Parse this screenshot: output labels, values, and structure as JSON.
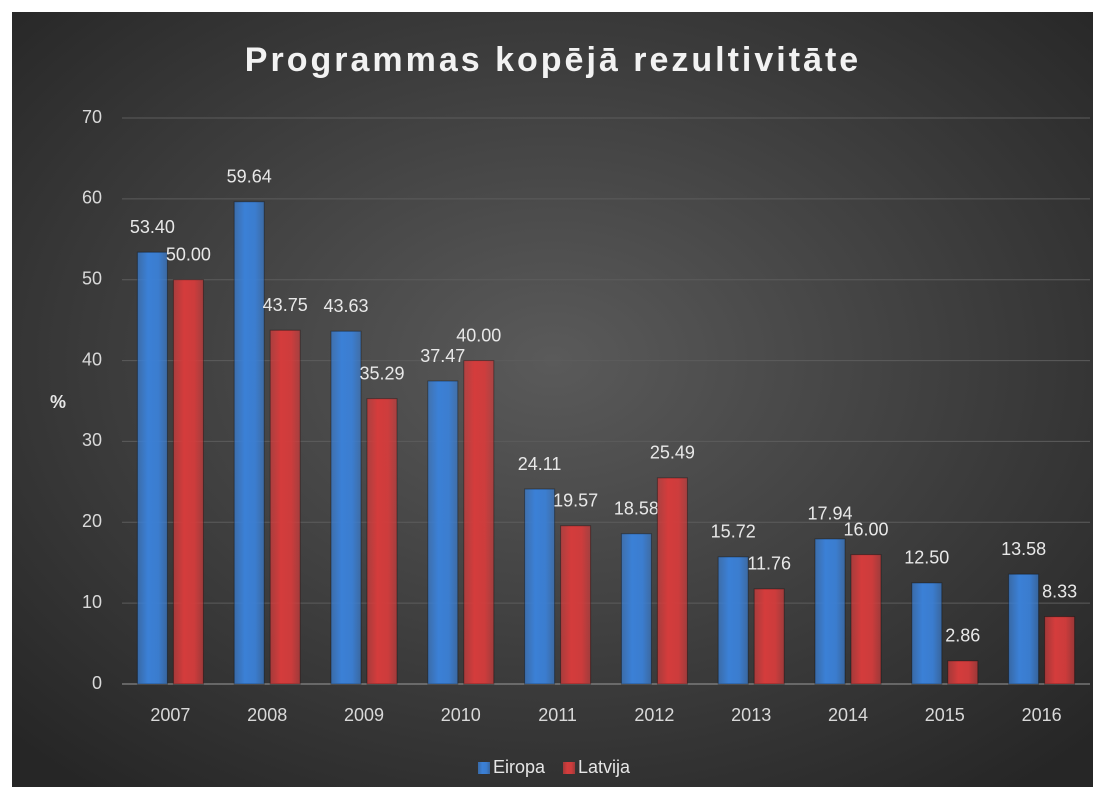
{
  "chart_data": {
    "type": "bar",
    "title": "Programmas kopējā rezultivitāte",
    "y_label": "%",
    "categories": [
      "2007",
      "2008",
      "2009",
      "2010",
      "2011",
      "2012",
      "2013",
      "2014",
      "2015",
      "2016"
    ],
    "series": [
      {
        "name": "Eiropa",
        "color": "#3b80d6",
        "values": [
          53.4,
          59.64,
          43.63,
          37.47,
          24.11,
          18.58,
          15.72,
          17.94,
          12.5,
          13.58
        ],
        "value_labels": [
          "53.40",
          "59.64",
          "43.63",
          "37.47",
          "24.11",
          "18.58",
          "15.72",
          "17.94",
          "12.50",
          "13.58"
        ]
      },
      {
        "name": "Latvija",
        "color": "#d43c3c",
        "values": [
          50,
          43.75,
          35.29,
          40,
          19.57,
          25.49,
          11.76,
          16,
          2.86,
          8.33
        ],
        "value_labels": [
          "50.00",
          "43.75",
          "35.29",
          "40.00",
          "19.57",
          "25.49",
          "11.76",
          "16.00",
          "2.86",
          "8.33"
        ]
      }
    ],
    "ylim": [
      0,
      70
    ],
    "yticks": [
      0,
      10,
      20,
      30,
      40,
      50,
      60,
      70
    ],
    "grid": true,
    "legend": "bottom"
  }
}
